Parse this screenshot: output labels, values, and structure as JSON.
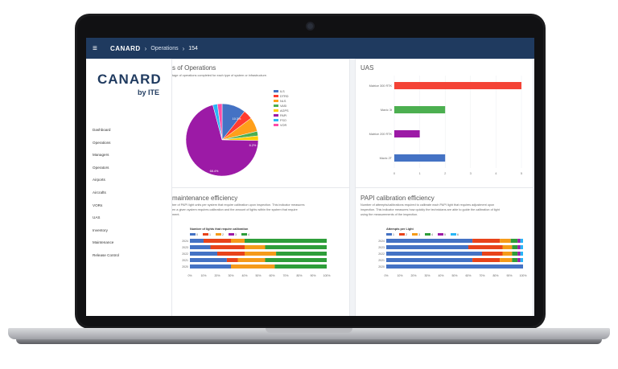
{
  "topbar": {
    "menu_icon": "menu-icon",
    "brand": "CANARD",
    "crumb_1": "Operations",
    "crumb_2": "154"
  },
  "sidebar": {
    "logo_main": "CANARD",
    "logo_sub": "by ITE",
    "items": [
      "Dashboard",
      "Operations",
      "Managers",
      "Operators",
      "Airports",
      "Aircrafts",
      "VORs",
      "UAS",
      "Inventory",
      "Maintenance",
      "Release Control"
    ]
  },
  "pie_card": {
    "title": "s of Operations",
    "desc": "tage of operations completed for each type of system or infrastructure.",
    "chart_data": {
      "type": "pie",
      "slices": [
        {
          "label": "ILS",
          "value": 10.3,
          "color": "#4472c4"
        },
        {
          "label": "DTRD",
          "value": 4,
          "color": "#ff3b30"
        },
        {
          "label": "NLS",
          "value": 6.2,
          "color": "#ff9f1a"
        },
        {
          "label": "VASI",
          "value": 2,
          "color": "#4caf50"
        },
        {
          "label": "AGPS",
          "value": 2,
          "color": "#ffcc00"
        },
        {
          "label": "PAPI",
          "value": 68.4,
          "color": "#9c1aa6"
        },
        {
          "label": "FSO",
          "value": 2,
          "color": "#29b6f6"
        },
        {
          "label": "VOR",
          "value": 2,
          "color": "#ff4da6"
        }
      ],
      "data_labels": [
        "10.3%",
        "6.2%",
        "68.4%"
      ]
    }
  },
  "uas_card": {
    "title": "UAS",
    "chart_data": {
      "type": "bar",
      "categories": [
        "Matrice 300 RTK",
        "Mavic 3t",
        "Matrice 200 RTK",
        "Mavic 2T"
      ],
      "values": [
        5,
        2,
        1,
        2
      ],
      "colors": [
        "#f44336",
        "#4caf50",
        "#9c1aa6",
        "#4472c4"
      ],
      "xlim": [
        0,
        5
      ],
      "ticks": [
        "0",
        "1",
        "2",
        "3",
        "4",
        "5"
      ]
    }
  },
  "maint_card": {
    "title": "maintenance efficiency",
    "desc_1": "ber of PAPI light units per system that require calibration upon inspection. This indicator measures",
    "desc_2": "en a given system requires calibration and the amount of lights within the system that require",
    "desc_3": "ment.",
    "chart_data": {
      "type": "bar",
      "title": "Number of lights that require calibration",
      "legend": [
        "0",
        "1",
        "2",
        "3",
        "4"
      ],
      "colors": [
        "#4472c4",
        "#e8431a",
        "#f59b1a",
        "#9c1aa6",
        "#2e9e3a"
      ],
      "categories": [
        "2024",
        "2023",
        "2022",
        "2021",
        "2020"
      ],
      "series": [
        {
          "name": "0",
          "values": [
            10,
            15,
            20,
            27,
            30
          ]
        },
        {
          "name": "1",
          "values": [
            20,
            25,
            20,
            8,
            0
          ]
        },
        {
          "name": "2",
          "values": [
            10,
            15,
            23,
            20,
            32
          ]
        },
        {
          "name": "3",
          "values": [
            0,
            0,
            0,
            0,
            0
          ]
        },
        {
          "name": "4",
          "values": [
            60,
            45,
            37,
            45,
            38
          ]
        }
      ],
      "ticks": [
        "0%",
        "10%",
        "20%",
        "30%",
        "40%",
        "50%",
        "60%",
        "70%",
        "80%",
        "90%",
        "100%"
      ]
    }
  },
  "papi_card": {
    "title": "PAPI calibration efficiency",
    "desc_1": "Number of attempts/calibrations required to calibrate each PAPI light that requires adjustment upon",
    "desc_2": "inspection. This indicator measures how quickly the technicians are able to guide the calibration of light",
    "desc_3": "using the measurements of the inspection.",
    "chart_data": {
      "type": "bar",
      "title": "Attempts per Light",
      "legend": [
        "1",
        "2",
        "3",
        "4",
        "5",
        "6"
      ],
      "colors": [
        "#4472c4",
        "#e8431a",
        "#f59b1a",
        "#2e9e3a",
        "#9c1aa6",
        "#29b6f6"
      ],
      "categories": [
        "2024",
        "2023",
        "2022",
        "2021",
        "2020"
      ],
      "series": [
        {
          "name": "1",
          "values": [
            63,
            60,
            70,
            63,
            100
          ]
        },
        {
          "name": "2",
          "values": [
            20,
            25,
            15,
            20,
            0
          ]
        },
        {
          "name": "3",
          "values": [
            8,
            7,
            7,
            9,
            0
          ]
        },
        {
          "name": "4",
          "values": [
            5,
            4,
            4,
            4,
            0
          ]
        },
        {
          "name": "5",
          "values": [
            2,
            2,
            2,
            2,
            0
          ]
        },
        {
          "name": "6",
          "values": [
            2,
            2,
            2,
            2,
            0
          ]
        }
      ],
      "ticks": [
        "0%",
        "10%",
        "20%",
        "30%",
        "40%",
        "50%",
        "60%",
        "70%",
        "80%",
        "90%",
        "100%"
      ]
    }
  }
}
